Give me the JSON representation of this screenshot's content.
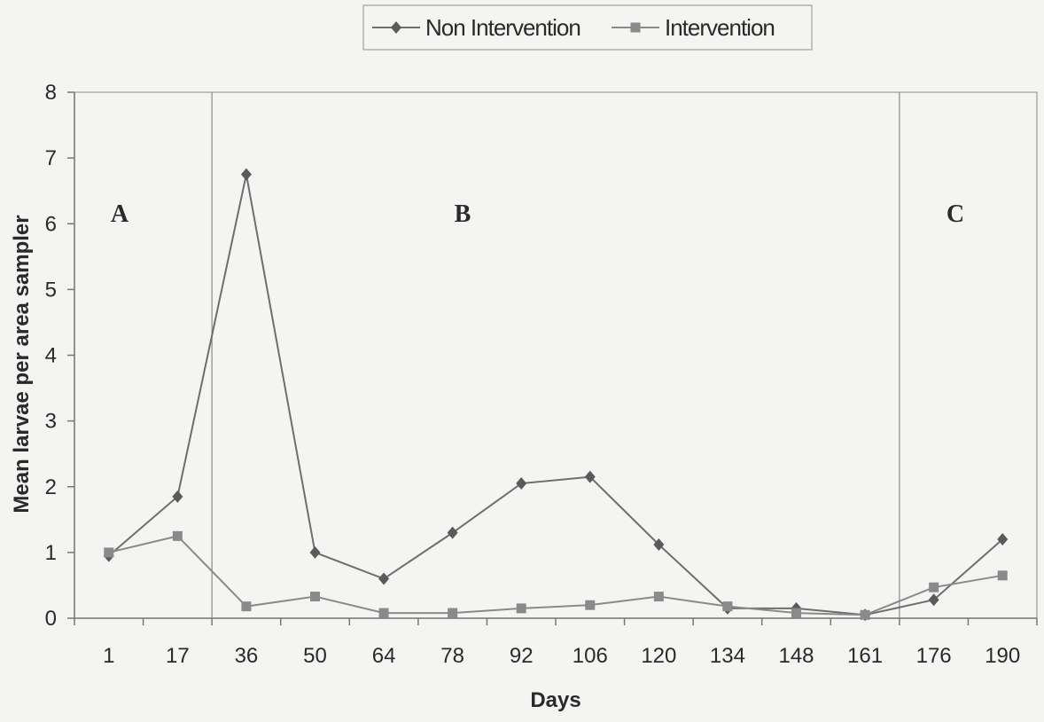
{
  "chart_data": {
    "type": "line",
    "categories": [
      "1",
      "17",
      "36",
      "50",
      "64",
      "78",
      "92",
      "106",
      "120",
      "134",
      "148",
      "161",
      "176",
      "190"
    ],
    "series": [
      {
        "name": "Non Intervention",
        "marker": "diamond",
        "color": "#6e6e6e",
        "values": [
          0.95,
          1.85,
          6.75,
          1.0,
          0.6,
          1.3,
          2.05,
          2.15,
          1.12,
          0.15,
          0.15,
          0.05,
          0.28,
          1.2
        ]
      },
      {
        "name": "Intervention",
        "marker": "square",
        "color": "#8a8a8a",
        "values": [
          1.0,
          1.25,
          0.18,
          0.33,
          0.08,
          0.08,
          0.15,
          0.2,
          0.33,
          0.18,
          0.08,
          0.05,
          0.47,
          0.65
        ]
      }
    ],
    "xlabel": "Days",
    "ylabel": "Mean larvae per area sampler",
    "ylim": [
      0,
      8
    ],
    "yticks": [
      0,
      1,
      2,
      3,
      4,
      5,
      6,
      7,
      8
    ],
    "grid": false,
    "legend_position": "top-center",
    "region_dividers_after_category": [
      "17",
      "161"
    ],
    "regions": [
      "A",
      "B",
      "C"
    ]
  }
}
